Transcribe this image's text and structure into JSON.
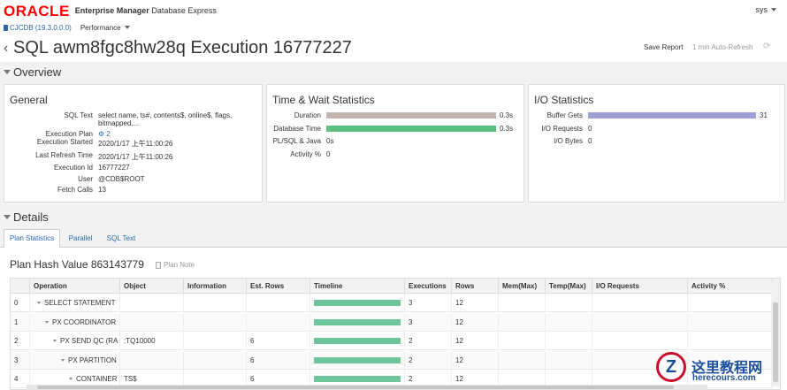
{
  "header": {
    "logo_text": "ORACLE",
    "product_bold": "Enterprise Manager",
    "product_rest": "Database Express",
    "user": "sys"
  },
  "nav": {
    "db_label": "CJCDB (19.3.0.0.0)",
    "menu_label": "Performance"
  },
  "title_bar": {
    "title": "SQL awm8fgc8hw28q Execution 16777227",
    "save_report": "Save Report",
    "auto_refresh": "1 min Auto-Refresh"
  },
  "overview": {
    "heading": "Overview",
    "general": {
      "title": "General",
      "sql_text_label": "SQL Text",
      "sql_text_line1": "select name, ts#, contents$, online$, flags,",
      "sql_text_line2": "bitmapped,...",
      "execution_plan_label": "Execution Plan",
      "execution_plan_value": "2",
      "execution_started_label": "Execution Started",
      "execution_started_value": "2020/1/17 上午11:00:26",
      "last_refresh_label": "Last Refresh Time",
      "last_refresh_value": "2020/1/17 上午11:00:26",
      "execution_id_label": "Execution Id",
      "execution_id_value": "16777227",
      "user_label": "User",
      "user_value": "@CDB$ROOT",
      "fetch_calls_label": "Fetch Calls",
      "fetch_calls_value": "13"
    },
    "time_wait": {
      "title": "Time & Wait Statistics",
      "rows": [
        {
          "label": "Duration",
          "value": "0.3s",
          "fill": 1.0,
          "color": "#c2b4b0"
        },
        {
          "label": "Database Time",
          "value": "0.3s",
          "fill": 1.0,
          "color": "#5cc07f"
        },
        {
          "label": "PL/SQL & Java",
          "value": "0s",
          "fill": 0,
          "color": "#5cc07f"
        },
        {
          "label": "Activity %",
          "value": "0",
          "fill": 0,
          "color": "#5cc07f"
        }
      ]
    },
    "io": {
      "title": "I/O Statistics",
      "rows": [
        {
          "label": "Buffer Gets",
          "value": "31",
          "fill": 1.0,
          "color": "#9c9fd4"
        },
        {
          "label": "I/O Requests",
          "value": "0",
          "fill": 0,
          "color": "#9c9fd4"
        },
        {
          "label": "I/O Bytes",
          "value": "0",
          "fill": 0,
          "color": "#9c9fd4"
        }
      ]
    }
  },
  "details": {
    "heading": "Details",
    "tabs": [
      "Plan Statistics",
      "Parallel",
      "SQL Text"
    ],
    "plan_hash": "Plan Hash Value 863143779",
    "plan_note": "Plan Note",
    "columns": [
      "Operation",
      "Object",
      "Information",
      "Est. Rows",
      "Timeline",
      "Executions",
      "Rows",
      "Mem(Max)",
      "Temp(Max)",
      "I/O Requests",
      "Activity %"
    ],
    "rows": [
      {
        "id": "0",
        "operation": "SELECT STATEMENT",
        "object": "",
        "information": "",
        "est_rows": "",
        "timeline": 1.0,
        "executions": "3",
        "rows": "12"
      },
      {
        "id": "1",
        "operation": "PX COORDINATOR",
        "object": "",
        "information": "",
        "est_rows": "",
        "timeline": 1.0,
        "executions": "3",
        "rows": "12"
      },
      {
        "id": "2",
        "operation": "PX SEND QC (RA",
        "object": ":TQ10000",
        "information": "",
        "est_rows": "6",
        "timeline": 1.0,
        "executions": "2",
        "rows": "12"
      },
      {
        "id": "3",
        "operation": "PX PARTITION",
        "object": "",
        "information": "",
        "est_rows": "6",
        "timeline": 1.0,
        "executions": "2",
        "rows": "12"
      },
      {
        "id": "4",
        "operation": "CONTAINER",
        "object": "TS$",
        "information": "",
        "est_rows": "6",
        "timeline": 1.0,
        "executions": "2",
        "rows": "12"
      }
    ]
  },
  "watermark": {
    "letter": "Z",
    "text": "这里教程网",
    "url": "herecours.com"
  }
}
